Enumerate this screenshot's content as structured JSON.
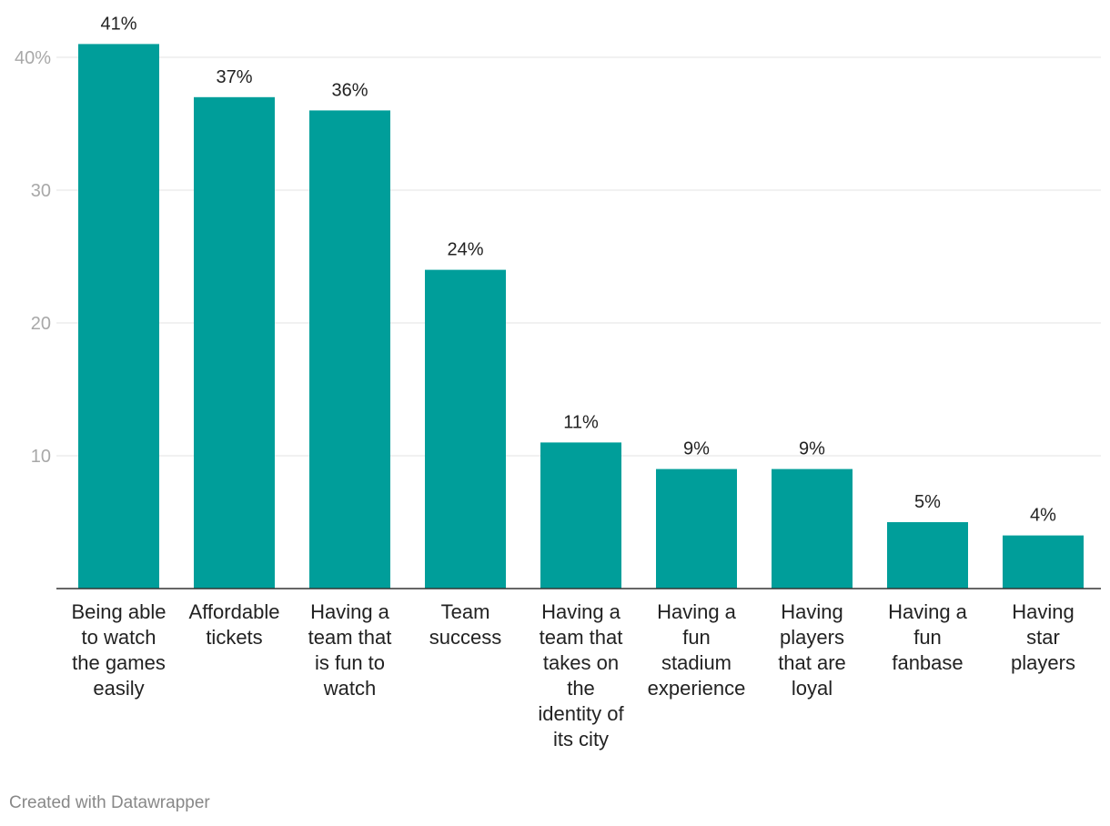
{
  "chart_data": {
    "type": "bar",
    "categories": [
      [
        "Being able",
        "to watch",
        "the games",
        "easily"
      ],
      [
        "Affordable",
        "tickets"
      ],
      [
        "Having a",
        "team that",
        "is fun to",
        "watch"
      ],
      [
        "Team",
        "success"
      ],
      [
        "Having a",
        "team that",
        "takes on",
        "the",
        "identity of",
        "its city"
      ],
      [
        "Having a",
        "fun",
        "stadium",
        "experience"
      ],
      [
        "Having",
        "players",
        "that are",
        "loyal"
      ],
      [
        "Having a",
        "fun",
        "fanbase"
      ],
      [
        "Having",
        "star",
        "players"
      ]
    ],
    "values": [
      41,
      37,
      36,
      24,
      11,
      9,
      9,
      5,
      4
    ],
    "value_labels": [
      "41%",
      "37%",
      "36%",
      "24%",
      "11%",
      "9%",
      "9%",
      "5%",
      "4%"
    ],
    "y_ticks": [
      {
        "value": 10,
        "label": "10"
      },
      {
        "value": 20,
        "label": "20"
      },
      {
        "value": 30,
        "label": "30"
      },
      {
        "value": 40,
        "label": "40%"
      }
    ],
    "ylim": [
      0,
      44
    ],
    "grid": true,
    "bar_color": "#009e9a"
  },
  "footer": {
    "credit": "Created with Datawrapper"
  }
}
